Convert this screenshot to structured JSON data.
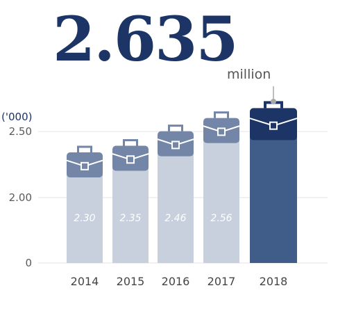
{
  "headline": {
    "value": "2.635",
    "unit": "million"
  },
  "chart_data": {
    "type": "bar",
    "unit_label": "('000)",
    "categories": [
      "2014",
      "2015",
      "2016",
      "2017",
      "2018"
    ],
    "values": [
      2.3,
      2.35,
      2.46,
      2.56,
      2.635
    ],
    "data_labels": [
      "2.30",
      "2.35",
      "2.46",
      "2.56",
      ""
    ],
    "y_ticks": [
      "0",
      "2.00",
      "2.50"
    ],
    "highlight_category": "2018",
    "colors": {
      "bar": "#c8d0de",
      "bar_icon": "#7386a7",
      "highlight_bar": "#405c88",
      "highlight_icon": "#1c3466",
      "grid": "#e3e3e3"
    }
  }
}
